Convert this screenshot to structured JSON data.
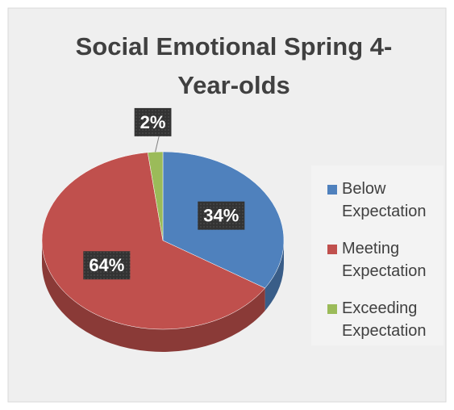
{
  "chart_data": {
    "type": "pie",
    "title": "Social Emotional Spring 4-Year-olds",
    "categories": [
      "Below Expectation",
      "Meeting Expectation",
      "Exceeding Expectation"
    ],
    "values": [
      34,
      64,
      2
    ],
    "value_labels": [
      "34%",
      "64%",
      "2%"
    ],
    "colors": [
      "#4f81bd",
      "#c0504d",
      "#9bbb59"
    ],
    "legend": "right"
  }
}
